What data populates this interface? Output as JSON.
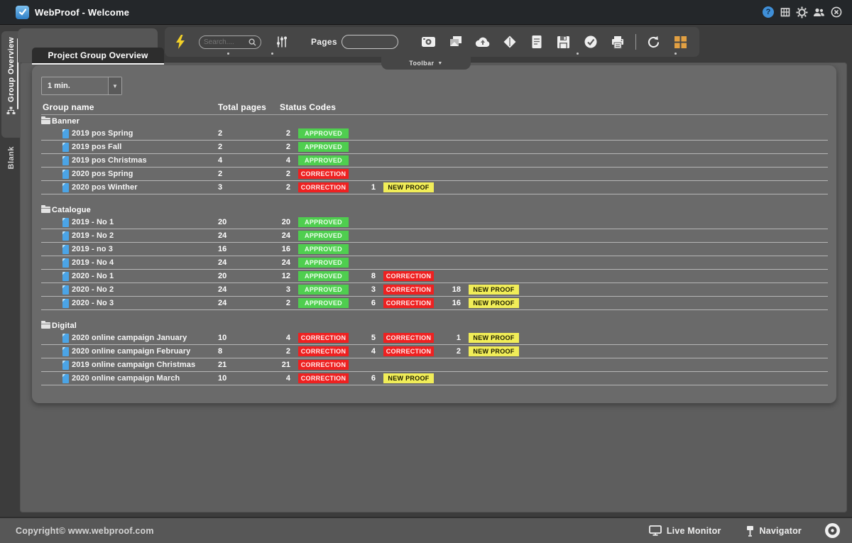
{
  "colors": {
    "approved": "#4fce4f",
    "correction": "#ee2121",
    "newproof": "#f1ed58",
    "accent_blue": "#4ba4e6",
    "grid_orange": "#e2a042",
    "bolt_yellow": "#f2d028"
  },
  "title_bar": {
    "title": "WebProof - Welcome",
    "icons": [
      "help-icon",
      "stats-icon",
      "gear-icon",
      "users-icon",
      "close-icon"
    ]
  },
  "sidebar": {
    "tabs": [
      {
        "label": "Group Overview",
        "icon": "sitemap-icon",
        "active": true
      },
      {
        "label": "Blank",
        "active": false
      }
    ]
  },
  "toolbar": {
    "search_placeholder": "Search....",
    "pages_label": "Pages",
    "tab_label": "Toolbar",
    "icons": [
      "bolt-icon",
      "search-input",
      "filter-sliders-icon",
      "pages-input",
      "camera-icon",
      "copy-icon",
      "cloud-icon",
      "diamond-icon",
      "document-icon",
      "save-icon",
      "check-circle-icon",
      "printer-icon",
      "refresh-icon",
      "grid-icon"
    ]
  },
  "content": {
    "tab_label": "Project Group Overview",
    "refresh_interval": "1 min.",
    "table": {
      "headers": [
        "Group name",
        "Total pages",
        "Status Codes"
      ],
      "groups": [
        {
          "name": "Banner",
          "rows": [
            {
              "name": "2019 pos Spring",
              "total": "2",
              "statuses": [
                {
                  "count": "2",
                  "label": "APPROVED",
                  "type": "approved"
                }
              ]
            },
            {
              "name": "2019 pos Fall",
              "total": "2",
              "statuses": [
                {
                  "count": "2",
                  "label": "APPROVED",
                  "type": "approved"
                }
              ]
            },
            {
              "name": "2019 pos Christmas",
              "total": "4",
              "statuses": [
                {
                  "count": "4",
                  "label": "APPROVED",
                  "type": "approved"
                }
              ]
            },
            {
              "name": "2020 pos Spring",
              "total": "2",
              "statuses": [
                {
                  "count": "2",
                  "label": "CORRECTION",
                  "type": "correction"
                }
              ]
            },
            {
              "name": "2020 pos Winther",
              "total": "3",
              "statuses": [
                {
                  "count": "2",
                  "label": "CORRECTION",
                  "type": "correction"
                },
                {
                  "count": "1",
                  "label": "NEW PROOF",
                  "type": "newproof"
                }
              ]
            }
          ]
        },
        {
          "name": "Catalogue",
          "rows": [
            {
              "name": "2019 - No 1",
              "total": "20",
              "statuses": [
                {
                  "count": "20",
                  "label": "APPROVED",
                  "type": "approved"
                }
              ]
            },
            {
              "name": "2019 - No 2",
              "total": "24",
              "statuses": [
                {
                  "count": "24",
                  "label": "APPROVED",
                  "type": "approved"
                }
              ]
            },
            {
              "name": "2019 - no 3",
              "total": "16",
              "statuses": [
                {
                  "count": "16",
                  "label": "APPROVED",
                  "type": "approved"
                }
              ]
            },
            {
              "name": "2019 - No 4",
              "total": "24",
              "statuses": [
                {
                  "count": "24",
                  "label": "APPROVED",
                  "type": "approved"
                }
              ]
            },
            {
              "name": "2020 - No 1",
              "total": "20",
              "statuses": [
                {
                  "count": "12",
                  "label": "APPROVED",
                  "type": "approved"
                },
                {
                  "count": "8",
                  "label": "CORRECTION",
                  "type": "correction"
                }
              ]
            },
            {
              "name": "2020 - No 2",
              "total": "24",
              "statuses": [
                {
                  "count": "3",
                  "label": "APPROVED",
                  "type": "approved"
                },
                {
                  "count": "3",
                  "label": "CORRECTION",
                  "type": "correction"
                },
                {
                  "count": "18",
                  "label": "NEW PROOF",
                  "type": "newproof"
                }
              ]
            },
            {
              "name": "2020 - No 3",
              "total": "24",
              "statuses": [
                {
                  "count": "2",
                  "label": "APPROVED",
                  "type": "approved"
                },
                {
                  "count": "6",
                  "label": "CORRECTION",
                  "type": "correction"
                },
                {
                  "count": "16",
                  "label": "NEW PROOF",
                  "type": "newproof"
                }
              ]
            }
          ]
        },
        {
          "name": "Digital",
          "rows": [
            {
              "name": "2020 online campaign January",
              "total": "10",
              "statuses": [
                {
                  "count": "4",
                  "label": "CORRECTION",
                  "type": "correction"
                },
                {
                  "count": "5",
                  "label": "CORRECTION",
                  "type": "correction"
                },
                {
                  "count": "1",
                  "label": "NEW PROOF",
                  "type": "newproof"
                }
              ]
            },
            {
              "name": "2020 online campaign February",
              "total": "8",
              "statuses": [
                {
                  "count": "2",
                  "label": "CORRECTION",
                  "type": "correction"
                },
                {
                  "count": "4",
                  "label": "CORRECTION",
                  "type": "correction"
                },
                {
                  "count": "2",
                  "label": "NEW PROOF",
                  "type": "newproof"
                }
              ]
            },
            {
              "name": "2019 online campaign Christmas",
              "total": "21",
              "statuses": [
                {
                  "count": "21",
                  "label": "CORRECTION",
                  "type": "correction"
                }
              ]
            },
            {
              "name": "2020 online campaign March",
              "total": "10",
              "statuses": [
                {
                  "count": "4",
                  "label": "CORRECTION",
                  "type": "correction"
                },
                {
                  "count": "6",
                  "label": "NEW PROOF",
                  "type": "newproof"
                }
              ]
            }
          ]
        }
      ]
    }
  },
  "footer": {
    "copyright": "Copyright© www.webproof.com",
    "live_monitor": "Live Monitor",
    "navigator": "Navigator"
  }
}
